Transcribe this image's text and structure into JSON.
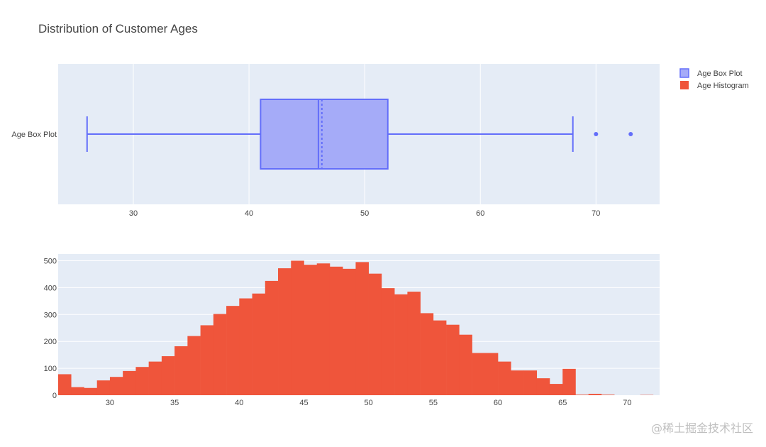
{
  "title": "Distribution of Customer Ages",
  "colors": {
    "plot_bg": "#e5ecf6",
    "grid": "#ffffff",
    "box_line": "#636efa",
    "box_fill": "#a5abf8",
    "hist": "#ef553b",
    "text": "#444444"
  },
  "legend": {
    "placement": "top-right",
    "items": [
      {
        "label": "Age Box Plot",
        "color": "#636efa",
        "fill": "#a5abf8"
      },
      {
        "label": "Age Histogram",
        "color": "#ef553b",
        "fill": "#ef553b"
      }
    ]
  },
  "watermark": "@稀土掘金技术社区",
  "chart_data": [
    {
      "type": "box",
      "name": "Age Box Plot",
      "category_label": "Age Box Plot",
      "orientation": "horizontal",
      "xlim": [
        23.5,
        75.5
      ],
      "xticks": [
        30,
        40,
        50,
        60,
        70
      ],
      "grid": true,
      "whisker_low": 26,
      "q1": 41,
      "median": 46,
      "mean": 46.3,
      "q3": 52,
      "whisker_high": 68,
      "outliers": [
        70,
        73
      ]
    },
    {
      "type": "bar",
      "name": "Age Histogram",
      "xlim": [
        26,
        72.5
      ],
      "ylim": [
        0,
        525
      ],
      "xticks": [
        30,
        35,
        40,
        45,
        50,
        55,
        60,
        65,
        70
      ],
      "yticks": [
        0,
        100,
        200,
        300,
        400,
        500
      ],
      "grid": true,
      "bin_width": 1,
      "bins_start": [
        26,
        27,
        28,
        29,
        30,
        31,
        32,
        33,
        34,
        35,
        36,
        37,
        38,
        39,
        40,
        41,
        42,
        43,
        44,
        45,
        46,
        47,
        48,
        49,
        50,
        51,
        52,
        53,
        54,
        55,
        56,
        57,
        58,
        59,
        60,
        61,
        62,
        63,
        64,
        65,
        66,
        67,
        68,
        69,
        70,
        71
      ],
      "counts": [
        78,
        30,
        27,
        55,
        68,
        90,
        105,
        125,
        145,
        182,
        220,
        260,
        302,
        332,
        360,
        378,
        425,
        472,
        500,
        485,
        490,
        478,
        470,
        495,
        452,
        398,
        375,
        385,
        305,
        278,
        262,
        225,
        157,
        157,
        125,
        92,
        92,
        63,
        42,
        98,
        2,
        5,
        2,
        0,
        0,
        1
      ]
    }
  ]
}
